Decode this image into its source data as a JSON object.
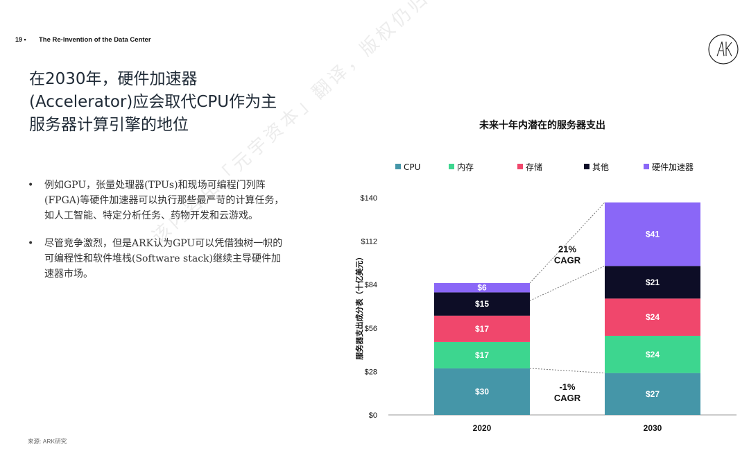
{
  "header": {
    "page_number": "19 •",
    "deck_title": "The Re-Invention of the Data Center"
  },
  "logo": {
    "icon": "ark-logo-icon"
  },
  "title": {
    "lines": [
      "在2030年，硬件加速器",
      "(Accelerator)应会取代CPU作为主",
      "服务器计算引擎的地位"
    ]
  },
  "bullets": [
    {
      "marker": "•",
      "text": "例如GPU，张量处理器(TPUs)和现场可编程门列阵(FPGA)等硬件加速器可以执行那些最严苛的计算任务，如人工智能、特定分析任务、药物开发和云游戏。"
    },
    {
      "marker": "•",
      "text": "尽管竞争激烈，但是ARK认为GPU可以凭借独树一帜的可编程性和软件堆栈(Software stack)继续主导硬件加速器市场。"
    }
  ],
  "source": "来源: ARK研究",
  "watermark": "该内容由「元宇资本」翻译，版权仍归原机构所有",
  "chart_data": {
    "type": "bar",
    "stacked": true,
    "title": "未来十年内潜在的服务器支出",
    "ylabel": "服务器支出成分表（十亿美元）",
    "xlabel": "",
    "categories": [
      "2020",
      "2030"
    ],
    "ylim": [
      0,
      140
    ],
    "yticks": [
      0,
      28,
      56,
      84,
      112,
      140
    ],
    "ytick_labels": [
      "$0",
      "$28",
      "$56",
      "$84",
      "$112",
      "$140"
    ],
    "legend_position": "top",
    "series": [
      {
        "name": "CPU",
        "color": "#4596a8",
        "values": [
          30,
          27
        ],
        "labels": [
          "$30",
          "$27"
        ]
      },
      {
        "name": "内存",
        "color": "#3dd68f",
        "values": [
          17,
          24
        ],
        "labels": [
          "$17",
          "$24"
        ]
      },
      {
        "name": "存储",
        "color": "#f0476c",
        "values": [
          17,
          24
        ],
        "labels": [
          "$17",
          "$24"
        ]
      },
      {
        "name": "其他",
        "color": "#0d0d26",
        "values": [
          15,
          21
        ],
        "labels": [
          "$15",
          "$21"
        ]
      },
      {
        "name": "硬件加速器",
        "color": "#8a67f7",
        "values": [
          6,
          41
        ],
        "labels": [
          "$6",
          "$41"
        ]
      }
    ],
    "annotations": [
      {
        "text_lines": [
          "21%",
          "CAGR"
        ],
        "y_value": 105
      },
      {
        "text_lines": [
          "-1%",
          "CAGR"
        ],
        "y_value": 16
      }
    ]
  }
}
